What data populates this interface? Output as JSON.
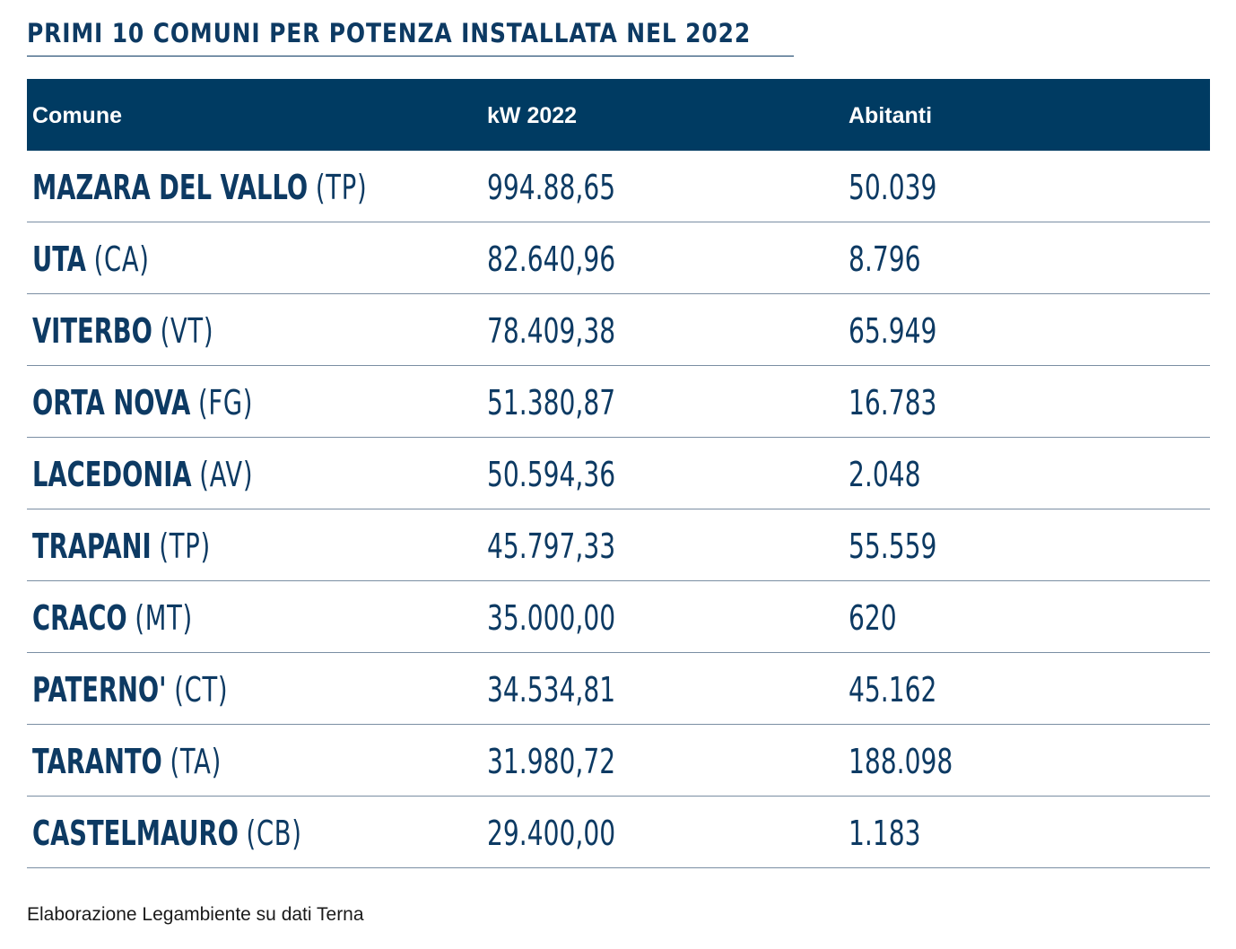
{
  "chart_data": {
    "type": "table",
    "title": "PRIMI 10 COMUNI PER POTENZA INSTALLATA NEL 2022",
    "columns": [
      "Comune",
      "kW 2022",
      "Abitanti"
    ],
    "rows": [
      {
        "comune": "MAZARA DEL VALLO",
        "prov": "(TP)",
        "kw": "994.88,65",
        "abitanti": "50.039"
      },
      {
        "comune": "UTA",
        "prov": "(CA)",
        "kw": "82.640,96",
        "abitanti": "8.796"
      },
      {
        "comune": "VITERBO",
        "prov": "(VT)",
        "kw": "78.409,38",
        "abitanti": "65.949"
      },
      {
        "comune": "ORTA NOVA",
        "prov": "(FG)",
        "kw": "51.380,87",
        "abitanti": "16.783"
      },
      {
        "comune": "LACEDONIA",
        "prov": "(AV)",
        "kw": "50.594,36",
        "abitanti": "2.048"
      },
      {
        "comune": "TRAPANI",
        "prov": "(TP)",
        "kw": "45.797,33",
        "abitanti": "55.559"
      },
      {
        "comune": "CRACO",
        "prov": "(MT)",
        "kw": "35.000,00",
        "abitanti": "620"
      },
      {
        "comune": "PATERNO'",
        "prov": "(CT)",
        "kw": "34.534,81",
        "abitanti": "45.162"
      },
      {
        "comune": "TARANTO",
        "prov": "(TA)",
        "kw": "31.980,72",
        "abitanti": "188.098"
      },
      {
        "comune": "CASTELMAURO",
        "prov": "(CB)",
        "kw": "29.400,00",
        "abitanti": "1.183"
      }
    ],
    "source": "Elaborazione Legambiente su dati Terna"
  },
  "colors": {
    "header_bg": "#003b62",
    "text": "#0d3a63",
    "rule": "#7a8ea3"
  }
}
